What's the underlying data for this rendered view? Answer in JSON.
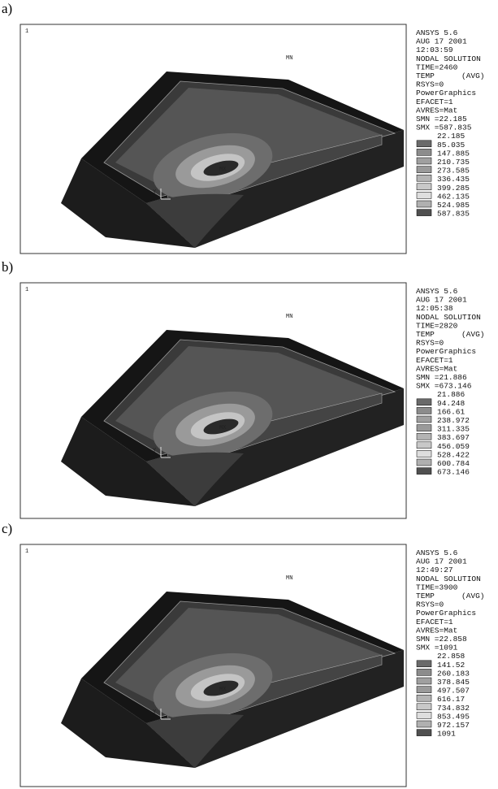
{
  "panels": [
    {
      "label": "a)",
      "view_number": "1",
      "info": [
        "ANSYS 5.6",
        "AUG 17 2001",
        "12:03:59",
        "NODAL SOLUTION",
        "TIME=2460",
        "TEMP",
        "RSYS=0",
        "PowerGraphics",
        "EFACET=1",
        "AVRES=Mat",
        "SMN =22.185",
        "SMX =587.835"
      ],
      "avg": "(AVG)",
      "legend": [
        "22.185",
        "85.035",
        "147.885",
        "210.735",
        "273.585",
        "336.435",
        "399.285",
        "462.135",
        "524.985",
        "587.835"
      ],
      "mn": "MN",
      "mx": "MX",
      "axis": "Y"
    },
    {
      "label": "b)",
      "view_number": "1",
      "info": [
        "ANSYS 5.6",
        "AUG 17 2001",
        "12:05:38",
        "NODAL SOLUTION",
        "TIME=2820",
        "TEMP",
        "RSYS=0",
        "PowerGraphics",
        "EFACET=1",
        "AVRES=Mat",
        "SMN =21.886",
        "SMX =673.146"
      ],
      "avg": "(AVG)",
      "legend": [
        "21.886",
        "94.248",
        "166.61",
        "238.972",
        "311.335",
        "383.697",
        "456.059",
        "528.422",
        "600.784",
        "673.146"
      ],
      "mn": "MN",
      "mx": "MX",
      "axis": "Y"
    },
    {
      "label": "c)",
      "view_number": "1",
      "info": [
        "ANSYS 5.6",
        "AUG 17 2001",
        "12:49:27",
        "NODAL SOLUTION",
        "TIME=3900",
        "TEMP",
        "RSYS=0",
        "PowerGraphics",
        "EFACET=1",
        "AVRES=Mat",
        "SMN =22.858",
        "SMX =1091"
      ],
      "avg": "(AVG)",
      "legend": [
        "22.858",
        "141.52",
        "260.183",
        "378.845",
        "497.507",
        "616.17",
        "734.832",
        "853.495",
        "972.157",
        "1091"
      ],
      "mn": "MN",
      "mx": "MX",
      "axis": "Y"
    }
  ]
}
